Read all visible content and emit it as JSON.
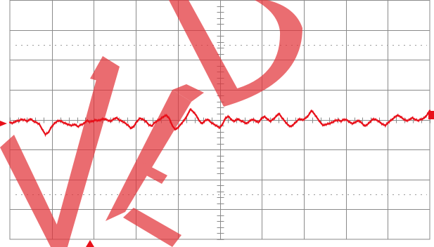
{
  "chart_data": {
    "type": "line",
    "grid": true,
    "divisions": {
      "x": 10,
      "y": 8
    },
    "center_subdivisions": 5,
    "trace_color": "#e8101a",
    "series": [
      {
        "values": [
          0.0,
          -0.01,
          0.02,
          0.03,
          0.05,
          0.04,
          0.02,
          0.06,
          0.02,
          0.0,
          -0.03,
          -0.12,
          -0.2,
          -0.17,
          -0.08,
          -0.02,
          0.02,
          0.03,
          0.0,
          -0.02,
          -0.04,
          -0.05,
          -0.03,
          -0.07,
          -0.04,
          -0.02,
          0.03,
          0.01,
          0.02,
          0.04,
          0.03,
          0.05,
          0.06,
          0.04,
          0.02,
          0.05,
          0.08,
          0.04,
          0.02,
          -0.01,
          -0.05,
          -0.1,
          -0.06,
          0.02,
          0.07,
          0.05,
          0.02,
          -0.04,
          -0.06,
          0.0,
          0.03,
          0.06,
          0.1,
          0.12,
          0.06,
          -0.06,
          -0.12,
          -0.08,
          -0.02,
          0.04,
          0.12,
          0.22,
          0.18,
          0.12,
          0.03,
          -0.02,
          0.03,
          0.05,
          0.0,
          -0.03,
          -0.06,
          -0.09,
          -0.02,
          0.08,
          0.1,
          0.04,
          0.02,
          0.06,
          0.03,
          0.01,
          -0.02,
          0.02,
          0.05,
          0.03,
          0.0,
          0.06,
          0.1,
          0.06,
          0.02,
          0.05,
          0.1,
          0.15,
          0.08,
          0.02,
          -0.04,
          -0.07,
          -0.03,
          0.02,
          0.06,
          0.04,
          0.07,
          0.12,
          0.2,
          0.14,
          0.07,
          0.0,
          -0.05,
          -0.03,
          -0.02,
          0.0,
          0.03,
          0.04,
          0.02,
          0.05,
          0.04,
          0.0,
          -0.02,
          0.01,
          0.03,
          -0.01,
          -0.06,
          -0.03,
          0.02,
          0.06,
          0.04,
          0.01,
          -0.03,
          -0.05,
          0.0,
          0.04,
          0.08,
          0.12,
          0.1,
          0.06,
          0.03,
          0.04,
          0.08,
          0.05,
          0.03,
          0.05,
          0.07,
          0.12,
          0.2
        ]
      }
    ],
    "ylim": [
      -1,
      1
    ],
    "xlim": [
      0,
      142
    ]
  },
  "icons": {
    "trace_marker": "triangle-right-icon",
    "channel_marker": "channel-number-icon",
    "trigger_marker": "arrow-up-icon"
  }
}
